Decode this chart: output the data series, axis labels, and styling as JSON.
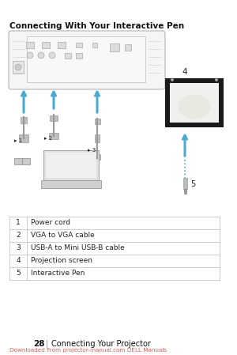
{
  "title": "Connecting With Your Interactive Pen",
  "bg_color": "#ffffff",
  "table_rows": [
    [
      "1",
      "Power cord"
    ],
    [
      "2",
      "VGA to VGA cable"
    ],
    [
      "3",
      "USB-A to Mini USB-B cable"
    ],
    [
      "4",
      "Projection screen"
    ],
    [
      "5",
      "Interactive Pen"
    ]
  ],
  "footer_page": "28",
  "footer_sep": "|",
  "footer_text": "Connecting Your Projector",
  "footer_link": "Downloaded From projector-manual.com DELL Manuals",
  "arrow_color": "#4aaad0",
  "proj_edge": "#aaaaaa",
  "proj_face": "#f5f5f5",
  "screen_outer": "#1a1a1a",
  "screen_inner": "#eeeeee",
  "text_dark": "#222222",
  "text_gray": "#666666",
  "link_color": "#d06060",
  "cable_color": "#999999",
  "table_border": "#bbbbbb"
}
